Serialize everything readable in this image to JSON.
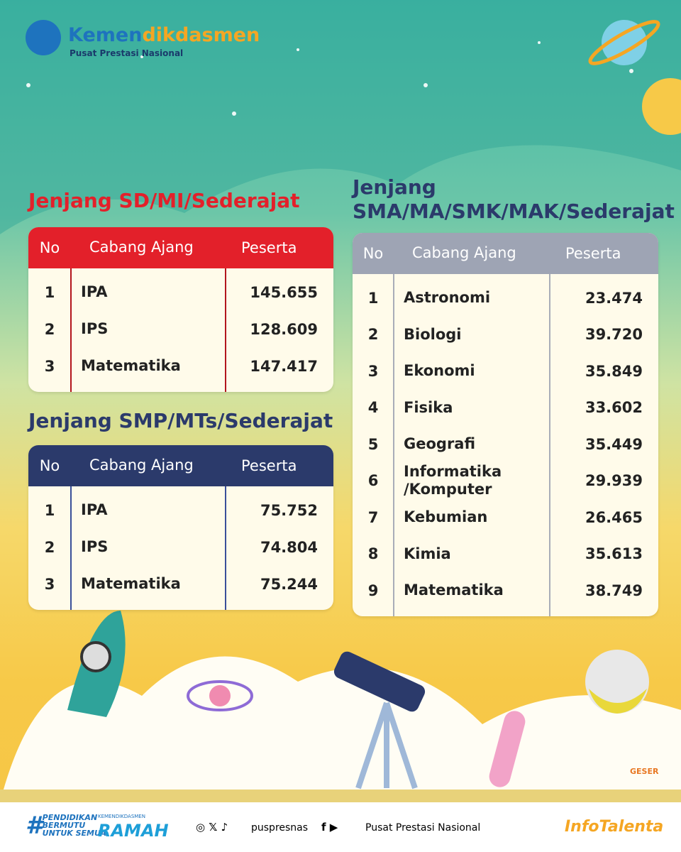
{
  "header": {
    "brand_a": "Kemen",
    "brand_b": "dikdasmen",
    "subtitle": "Pusat Prestasi Nasional"
  },
  "tables": {
    "sd": {
      "title": "Jenjang SD/MI/Sederajat",
      "columns": [
        "No",
        "Cabang Ajang",
        "Peserta"
      ],
      "rows": [
        [
          "1",
          "IPA",
          "145.655"
        ],
        [
          "2",
          "IPS",
          "128.609"
        ],
        [
          "3",
          "Matematika",
          "147.417"
        ]
      ]
    },
    "smp": {
      "title": "Jenjang SMP/MTs/Sederajat",
      "columns": [
        "No",
        "Cabang Ajang",
        "Peserta"
      ],
      "rows": [
        [
          "1",
          "IPA",
          "75.752"
        ],
        [
          "2",
          "IPS",
          "74.804"
        ],
        [
          "3",
          "Matematika",
          "75.244"
        ]
      ]
    },
    "sma": {
      "title": [
        "Jenjang",
        "SMA/MA/SMK/MAK/Sederajat"
      ],
      "columns": [
        "No",
        "Cabang Ajang",
        "Peserta"
      ],
      "rows": [
        [
          "1",
          "Astronomi",
          "23.474"
        ],
        [
          "2",
          "Biologi",
          "39.720"
        ],
        [
          "3",
          "Ekonomi",
          "35.849"
        ],
        [
          "4",
          "Fisika",
          "33.602"
        ],
        [
          "5",
          "Geografi",
          "35.449"
        ],
        [
          "6",
          "Informatika\n/Komputer",
          "29.939"
        ],
        [
          "7",
          "Kebumian",
          "26.465"
        ],
        [
          "8",
          "Kimia",
          "35.613"
        ],
        [
          "9",
          "Matematika",
          "38.749"
        ]
      ]
    }
  },
  "swipe": "GESER",
  "footer": {
    "tagline": [
      "#",
      "PENDIDIKAN",
      "BERMUTU",
      "UNTUK SEMUA"
    ],
    "ramah_small": "KEMENDIKDASMEN",
    "ramah": "RAMAH",
    "handle": "puspresnas",
    "channel": "Pusat Prestasi Nasional",
    "brand": "InfoTalenta"
  }
}
